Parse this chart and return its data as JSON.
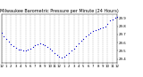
{
  "title": "Milwaukee Barometric Pressure per Minute (24 Hours)",
  "title_fontsize": 3.5,
  "dot_color": "#0000cc",
  "dot_size": 0.8,
  "bg_color": "#ffffff",
  "grid_color": "#aaaaaa",
  "tick_fontsize": 2.8,
  "ylim": [
    29.35,
    29.95
  ],
  "xlim": [
    0,
    1440
  ],
  "yticks": [
    29.4,
    29.5,
    29.6,
    29.7,
    29.8,
    29.9
  ],
  "xtick_positions": [
    0,
    60,
    120,
    180,
    240,
    300,
    360,
    420,
    480,
    540,
    600,
    660,
    720,
    780,
    840,
    900,
    960,
    1020,
    1080,
    1140,
    1200,
    1260,
    1320,
    1380,
    1440
  ],
  "xtick_labels": [
    "12",
    "1",
    "2",
    "3",
    "4",
    "5",
    "6",
    "7",
    "8",
    "9",
    "10",
    "11",
    "12",
    "1",
    "2",
    "3",
    "4",
    "5",
    "6",
    "7",
    "8",
    "9",
    "10",
    "11",
    "12"
  ],
  "data_x": [
    0,
    30,
    60,
    90,
    120,
    150,
    180,
    210,
    240,
    270,
    300,
    330,
    360,
    390,
    420,
    450,
    480,
    510,
    540,
    570,
    600,
    630,
    660,
    690,
    720,
    750,
    780,
    810,
    840,
    870,
    900,
    930,
    960,
    990,
    1020,
    1050,
    1080,
    1110,
    1140,
    1170,
    1200,
    1230,
    1260,
    1290,
    1320,
    1350,
    1380,
    1410,
    1440
  ],
  "data_y": [
    29.72,
    29.68,
    29.65,
    29.61,
    29.58,
    29.56,
    29.54,
    29.52,
    29.51,
    29.5,
    29.5,
    29.51,
    29.53,
    29.55,
    29.57,
    29.58,
    29.59,
    29.58,
    29.57,
    29.55,
    29.53,
    29.5,
    29.47,
    29.45,
    29.43,
    29.42,
    29.43,
    29.45,
    29.47,
    29.5,
    29.53,
    29.56,
    29.59,
    29.62,
    29.65,
    29.68,
    29.7,
    29.72,
    29.74,
    29.75,
    29.76,
    29.77,
    29.78,
    29.8,
    29.83,
    29.87,
    29.88,
    29.9,
    29.91
  ]
}
